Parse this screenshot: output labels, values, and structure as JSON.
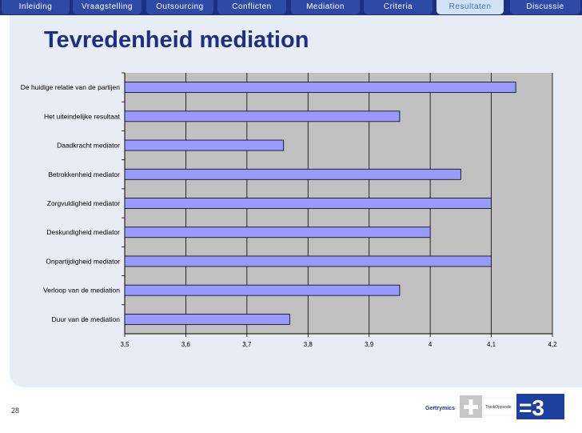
{
  "nav": {
    "tabs": [
      {
        "label": "Inleiding",
        "active": false
      },
      {
        "label": "Vraagstelling",
        "active": false
      },
      {
        "label": "Outsourcing",
        "active": false
      },
      {
        "label": "Conflicten",
        "active": false
      },
      {
        "label": "Mediation",
        "active": false
      },
      {
        "label": "Criteria",
        "active": false
      },
      {
        "label": "Resultaten",
        "active": true
      },
      {
        "label": "Discussie",
        "active": false
      }
    ]
  },
  "slide": {
    "title": "Tevredenheid mediation",
    "page_number": "28"
  },
  "logos": {
    "left": "Gertrymics",
    "middle": "ThinkOppsode",
    "right": "=3"
  },
  "colors": {
    "nav_bg": "#1d2f83",
    "tab_bg": "#2d4aa6",
    "tab_active_bg": "#cfe3f5",
    "bar_fill": "#9999ff",
    "plot_bg": "#c0c0c0",
    "title": "#1d2f83"
  },
  "chart_data": {
    "type": "bar",
    "orientation": "horizontal",
    "categories": [
      "De huidige relatie van de partijen",
      "Het uiteindelijke resultaat",
      "Daadkracht mediator",
      "Betrokkenheid mediator",
      "Zorgvuldigheid mediator",
      "Deskundigheid mediator",
      "Onpartijdigheid mediator",
      "Verloop van de mediation",
      "Duur van de mediation"
    ],
    "values": [
      4.14,
      3.95,
      3.76,
      4.05,
      4.1,
      4.0,
      4.1,
      3.95,
      3.77
    ],
    "xlim": [
      3.5,
      4.2
    ],
    "ticks": [
      3.5,
      3.6,
      3.7,
      3.8,
      3.9,
      4.0,
      4.1,
      4.2
    ],
    "tick_labels": [
      "3,5",
      "3,6",
      "3,7",
      "3,8",
      "3,9",
      "4",
      "4,1",
      "4,2"
    ],
    "grid": true,
    "legend": "none"
  }
}
